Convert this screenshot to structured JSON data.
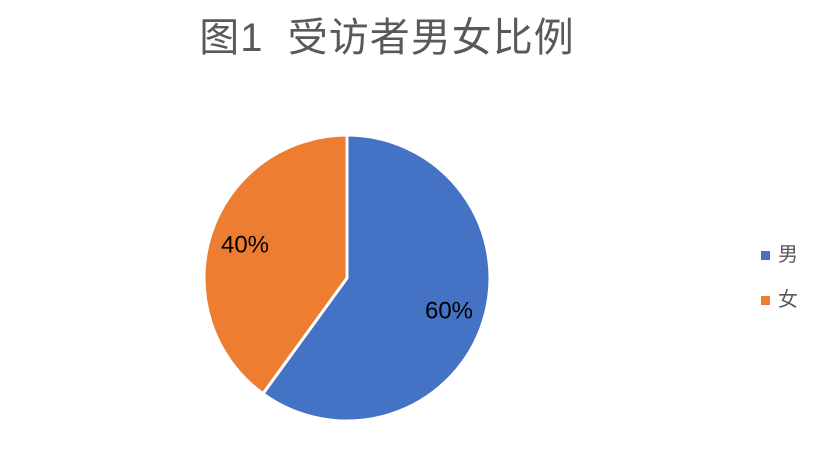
{
  "chart_data": {
    "type": "pie",
    "title": "图1  受访者男女比例",
    "categories": [
      "男",
      "女"
    ],
    "values": [
      60,
      40
    ],
    "data_labels": [
      "60%",
      "40%"
    ],
    "slice_colors": [
      "#4472C4",
      "#ED7D31"
    ],
    "start_angle_deg": 0,
    "direction": "clockwise",
    "legend_position": "right",
    "title_color": "#595959",
    "data_label_color": "#000000",
    "slice_border_color": "#FFFFFF",
    "background": "#FFFFFF"
  },
  "legend": {
    "text_color": "#595959",
    "items": [
      {
        "label": "男",
        "color": "#4472C4"
      },
      {
        "label": "女",
        "color": "#ED7D31"
      }
    ]
  }
}
